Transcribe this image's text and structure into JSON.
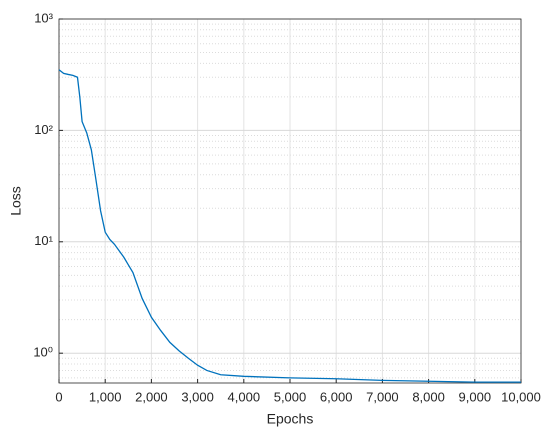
{
  "chart_data": {
    "type": "line",
    "xlabel": "Epochs",
    "ylabel": "Loss",
    "x": [
      0,
      100,
      200,
      300,
      400,
      450,
      500,
      600,
      700,
      800,
      900,
      1000,
      1100,
      1200,
      1400,
      1600,
      1800,
      2000,
      2200,
      2400,
      2600,
      2800,
      3000,
      3200,
      3500,
      4000,
      5000,
      6000,
      7000,
      8000,
      9000,
      10000
    ],
    "series": [
      {
        "name": "Loss",
        "color": "#0072bd",
        "values": [
          350,
          325,
          318,
          312,
          300,
          200,
          120,
          95,
          67,
          36,
          19,
          12.2,
          10.5,
          9.5,
          7.3,
          5.3,
          3.1,
          2.1,
          1.6,
          1.25,
          1.05,
          0.9,
          0.78,
          0.7,
          0.64,
          0.62,
          0.6,
          0.59,
          0.57,
          0.56,
          0.55,
          0.55
        ]
      }
    ],
    "xlim": [
      0,
      10000
    ],
    "xticks": [
      0,
      {
        "value": 1000,
        "label": "1,000"
      },
      {
        "value": 2000,
        "label": "2,000"
      },
      {
        "value": 3000,
        "label": "3,000"
      },
      {
        "value": 4000,
        "label": "4,000"
      },
      {
        "value": 5000,
        "label": "5,000"
      },
      {
        "value": 6000,
        "label": "6,000"
      },
      {
        "value": 7000,
        "label": "7,000"
      },
      {
        "value": 8000,
        "label": "8,000"
      },
      {
        "value": 9000,
        "label": "9,000"
      },
      {
        "value": 10000,
        "label": "10,000"
      }
    ],
    "ylim": [
      0.54,
      1000
    ],
    "yscale": "log",
    "yticks": [
      {
        "value": 1,
        "label": "10⁰"
      },
      {
        "value": 10,
        "label": "10¹"
      },
      {
        "value": 100,
        "label": "10²"
      },
      {
        "value": 1000,
        "label": "10³"
      }
    ],
    "grid": true,
    "minor_grid": true
  }
}
